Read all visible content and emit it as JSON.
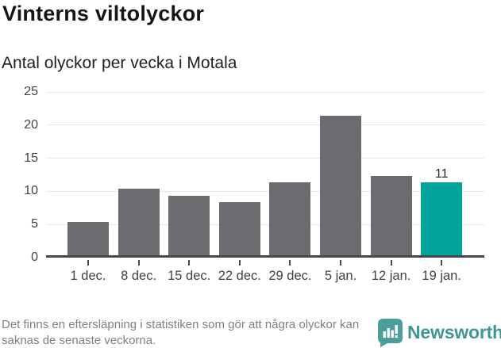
{
  "header": {
    "title": "Vinterns viltolyckor",
    "subtitle": "Antal olyckor per vecka i Motala"
  },
  "chart_data": {
    "type": "bar",
    "title": "Vinterns viltolyckor",
    "subtitle": "Antal olyckor per vecka i Motala",
    "categories": [
      "1 dec.",
      "8 dec.",
      "15 dec.",
      "22 dec.",
      "29 dec.",
      "5 jan.",
      "12 jan.",
      "19 jan."
    ],
    "values": [
      5,
      10,
      9,
      8,
      11,
      21,
      12,
      11
    ],
    "highlight_index": 7,
    "annotations": [
      {
        "index": 7,
        "label": "11"
      }
    ],
    "xlabel": "",
    "ylabel": "",
    "ylim": [
      0,
      25
    ],
    "yticks": [
      0,
      5,
      10,
      15,
      20,
      25
    ],
    "grid": true,
    "legend": "none",
    "bar_color": "#6b6b70",
    "highlight_color": "#00a49a"
  },
  "footer": {
    "note": "Det finns en eftersläpning i statistiken som gör att några olyckor kan saknas de senaste veckorna.",
    "brand": "Newsworthy"
  },
  "colors": {
    "background": "#ffffff",
    "axis": "#48484c",
    "gridline": "#e8e8ea",
    "tick_text": "#414146",
    "footnote_text": "#7f7f84",
    "brand_teal": "#3f9793",
    "brand_icon_teal": "#4b9e9a"
  }
}
